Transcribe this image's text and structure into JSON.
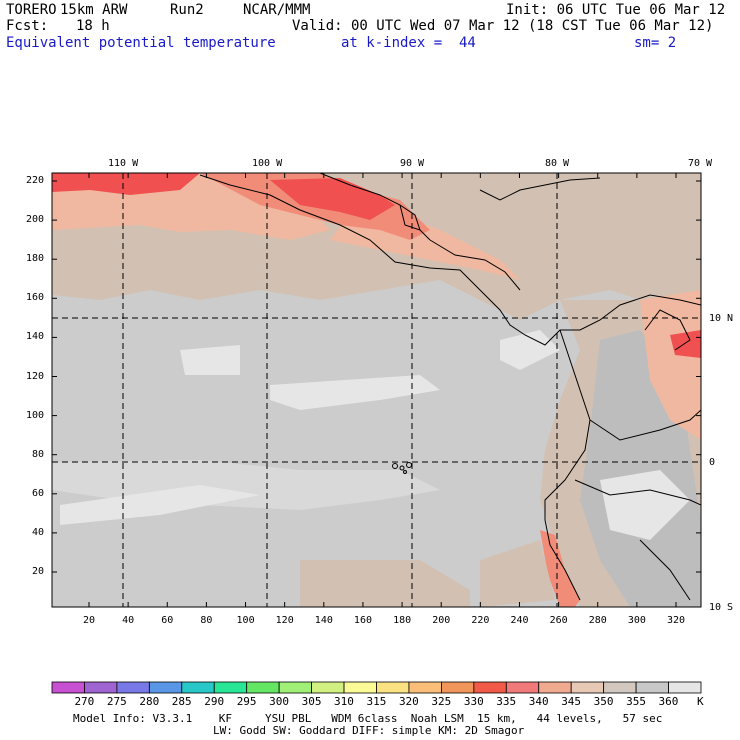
{
  "header": {
    "model": "TORERO",
    "resolution": "15km ARW",
    "run": "Run2",
    "org": "NCAR/MMM",
    "init": "Init: 06 UTC Tue 06 Mar 12",
    "fcst_label": "Fcst:",
    "fcst_value": "18 h",
    "valid": "Valid: 00 UTC Wed 07 Mar 12 (18 CST Tue 06 Mar 12)",
    "field": "Equivalent potential temperature",
    "level": "at k-index =  44",
    "smoothing": "sm= 2"
  },
  "map": {
    "top_lon_labels": [
      "110 W",
      "100 W",
      "90 W",
      "80 W",
      "70 W"
    ],
    "right_lat_labels": [
      "10 N",
      "0",
      "10 S"
    ],
    "left_ticks": [
      "220",
      "200",
      "180",
      "160",
      "140",
      "120",
      "100",
      "80",
      "60",
      "40",
      "20"
    ],
    "bottom_ticks": [
      "20",
      "40",
      "60",
      "80",
      "100",
      "120",
      "140",
      "160",
      "180",
      "200",
      "220",
      "240",
      "260",
      "280",
      "300",
      "320"
    ],
    "colors": {
      "base": "#cccccc",
      "warm_tan": "#d2c1b2",
      "peach": "#f0b8a0",
      "salmon": "#f08c78",
      "red": "#f05050",
      "light": "#f0f0f0",
      "terrain_dark": "#aaaaaa"
    }
  },
  "colorbar": {
    "labels": [
      "270",
      "275",
      "280",
      "285",
      "290",
      "295",
      "300",
      "305",
      "310",
      "315",
      "320",
      "325",
      "330",
      "335",
      "340",
      "345",
      "350",
      "355",
      "360"
    ],
    "unit": "K",
    "colors": [
      "#c850d2",
      "#a064d2",
      "#7878e6",
      "#5a96e6",
      "#28c8c8",
      "#28e696",
      "#64e664",
      "#a0f078",
      "#d2f082",
      "#fafa96",
      "#fae182",
      "#fabe78",
      "#f0965a",
      "#f05a46",
      "#f07a7a",
      "#f0aa90",
      "#e6c8b4",
      "#d2c8c0",
      "#c8c8c8",
      "#e6e6e6"
    ]
  },
  "footer": {
    "line1": "Model Info: V3.3.1    KF     YSU PBL   WDM 6class  Noah LSM  15 km,   44 levels,   57 sec",
    "line2": "LW: Godd SW: Goddard DIFF: simple KM: 2D Smagor"
  }
}
